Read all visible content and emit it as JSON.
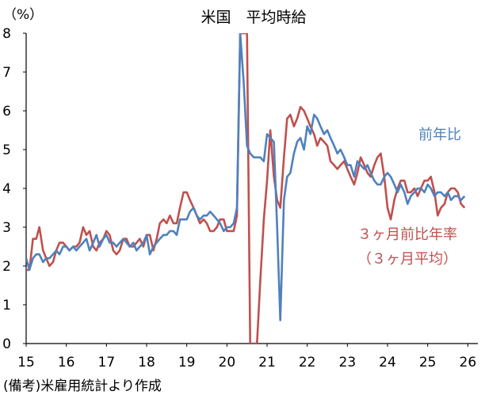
{
  "chart_data": {
    "type": "line",
    "title": "米国　平均時給",
    "ylabel": "（%）",
    "note": "(備考)米雇用統計より作成",
    "ylim": [
      0,
      8
    ],
    "xlim": [
      2015,
      2026.25
    ],
    "y_ticks": [
      "0",
      "1",
      "2",
      "3",
      "4",
      "5",
      "6",
      "7",
      "8"
    ],
    "x_ticks": [
      {
        "label": "15",
        "year": 2015
      },
      {
        "label": "16",
        "year": 2016
      },
      {
        "label": "17",
        "year": 2017
      },
      {
        "label": "18",
        "year": 2018
      },
      {
        "label": "19",
        "year": 2019
      },
      {
        "label": "20",
        "year": 2020
      },
      {
        "label": "21",
        "year": 2021
      },
      {
        "label": "22",
        "year": 2022
      },
      {
        "label": "23",
        "year": 2023
      },
      {
        "label": "24",
        "year": 2024
      },
      {
        "label": "25",
        "year": 2025
      },
      {
        "label": "26",
        "year": 2026
      }
    ],
    "grid": false,
    "series": [
      {
        "name": "前年比",
        "color": "#4F81BD",
        "label_lines": [
          "前年比"
        ],
        "points": [
          [
            2015.0,
            2.2
          ],
          [
            2015.08,
            1.9
          ],
          [
            2015.17,
            2.2
          ],
          [
            2015.25,
            2.3
          ],
          [
            2015.33,
            2.3
          ],
          [
            2015.42,
            2.1
          ],
          [
            2015.5,
            2.2
          ],
          [
            2015.58,
            2.2
          ],
          [
            2015.67,
            2.3
          ],
          [
            2015.75,
            2.4
          ],
          [
            2015.83,
            2.3
          ],
          [
            2015.92,
            2.5
          ],
          [
            2016.0,
            2.5
          ],
          [
            2016.08,
            2.4
          ],
          [
            2016.17,
            2.5
          ],
          [
            2016.25,
            2.4
          ],
          [
            2016.33,
            2.5
          ],
          [
            2016.42,
            2.6
          ],
          [
            2016.5,
            2.7
          ],
          [
            2016.58,
            2.4
          ],
          [
            2016.67,
            2.6
          ],
          [
            2016.75,
            2.8
          ],
          [
            2016.83,
            2.5
          ],
          [
            2016.92,
            2.7
          ],
          [
            2017.0,
            2.8
          ],
          [
            2017.08,
            2.6
          ],
          [
            2017.17,
            2.6
          ],
          [
            2017.25,
            2.5
          ],
          [
            2017.33,
            2.6
          ],
          [
            2017.42,
            2.7
          ],
          [
            2017.5,
            2.6
          ],
          [
            2017.58,
            2.5
          ],
          [
            2017.67,
            2.6
          ],
          [
            2017.75,
            2.4
          ],
          [
            2017.83,
            2.5
          ],
          [
            2017.92,
            2.6
          ],
          [
            2018.0,
            2.8
          ],
          [
            2018.08,
            2.3
          ],
          [
            2018.17,
            2.5
          ],
          [
            2018.25,
            2.6
          ],
          [
            2018.33,
            2.7
          ],
          [
            2018.42,
            2.8
          ],
          [
            2018.5,
            2.8
          ],
          [
            2018.58,
            2.9
          ],
          [
            2018.67,
            2.9
          ],
          [
            2018.75,
            2.8
          ],
          [
            2018.83,
            3.2
          ],
          [
            2018.92,
            3.2
          ],
          [
            2019.0,
            3.2
          ],
          [
            2019.08,
            3.4
          ],
          [
            2019.17,
            3.5
          ],
          [
            2019.25,
            3.3
          ],
          [
            2019.33,
            3.2
          ],
          [
            2019.42,
            3.3
          ],
          [
            2019.5,
            3.3
          ],
          [
            2019.58,
            3.4
          ],
          [
            2019.67,
            3.3
          ],
          [
            2019.75,
            3.2
          ],
          [
            2019.83,
            3.1
          ],
          [
            2019.92,
            2.9
          ],
          [
            2020.0,
            3.0
          ],
          [
            2020.08,
            3.0
          ],
          [
            2020.17,
            3.1
          ],
          [
            2020.25,
            3.5
          ],
          [
            2020.33,
            8.0
          ],
          [
            2020.42,
            6.7
          ],
          [
            2020.5,
            5.1
          ],
          [
            2020.58,
            4.9
          ],
          [
            2020.67,
            4.8
          ],
          [
            2020.75,
            4.8
          ],
          [
            2020.83,
            4.8
          ],
          [
            2020.92,
            4.7
          ],
          [
            2021.0,
            5.4
          ],
          [
            2021.08,
            5.3
          ],
          [
            2021.17,
            5.2
          ],
          [
            2021.25,
            3.0
          ],
          [
            2021.33,
            0.6
          ],
          [
            2021.42,
            3.7
          ],
          [
            2021.5,
            4.3
          ],
          [
            2021.58,
            4.4
          ],
          [
            2021.67,
            4.9
          ],
          [
            2021.75,
            5.2
          ],
          [
            2021.83,
            5.3
          ],
          [
            2021.92,
            5.0
          ],
          [
            2022.0,
            5.6
          ],
          [
            2022.08,
            5.4
          ],
          [
            2022.17,
            5.9
          ],
          [
            2022.25,
            5.8
          ],
          [
            2022.33,
            5.6
          ],
          [
            2022.42,
            5.4
          ],
          [
            2022.5,
            5.5
          ],
          [
            2022.58,
            5.3
          ],
          [
            2022.67,
            5.1
          ],
          [
            2022.75,
            4.9
          ],
          [
            2022.83,
            5.0
          ],
          [
            2022.92,
            4.8
          ],
          [
            2023.0,
            4.6
          ],
          [
            2023.08,
            4.6
          ],
          [
            2023.17,
            4.3
          ],
          [
            2023.25,
            4.7
          ],
          [
            2023.33,
            4.6
          ],
          [
            2023.42,
            4.5
          ],
          [
            2023.5,
            4.6
          ],
          [
            2023.58,
            4.4
          ],
          [
            2023.67,
            4.2
          ],
          [
            2023.75,
            4.1
          ],
          [
            2023.83,
            4.1
          ],
          [
            2023.92,
            4.3
          ],
          [
            2024.0,
            4.4
          ],
          [
            2024.08,
            4.3
          ],
          [
            2024.17,
            4.1
          ],
          [
            2024.25,
            3.9
          ],
          [
            2024.33,
            4.1
          ],
          [
            2024.42,
            3.9
          ],
          [
            2024.5,
            3.6
          ],
          [
            2024.58,
            3.8
          ],
          [
            2024.67,
            3.9
          ],
          [
            2024.75,
            4.0
          ],
          [
            2024.83,
            4.0
          ],
          [
            2024.92,
            3.9
          ],
          [
            2025.0,
            4.1
          ],
          [
            2025.08,
            4.0
          ],
          [
            2025.17,
            3.8
          ],
          [
            2025.25,
            3.9
          ],
          [
            2025.33,
            3.9
          ],
          [
            2025.42,
            3.8
          ],
          [
            2025.5,
            3.9
          ],
          [
            2025.58,
            3.7
          ],
          [
            2025.67,
            3.8
          ],
          [
            2025.75,
            3.8
          ],
          [
            2025.83,
            3.7
          ],
          [
            2025.92,
            3.8
          ]
        ]
      },
      {
        "name": "３ヶ月前比年率（３ヶ月平均）",
        "color": "#C0504D",
        "label_lines": [
          "３ヶ月前比年率",
          "（３ヶ月平均）"
        ],
        "points": [
          [
            2015.0,
            1.9
          ],
          [
            2015.08,
            1.9
          ],
          [
            2015.17,
            2.7
          ],
          [
            2015.25,
            2.7
          ],
          [
            2015.33,
            3.0
          ],
          [
            2015.42,
            2.4
          ],
          [
            2015.5,
            2.2
          ],
          [
            2015.58,
            2.0
          ],
          [
            2015.67,
            2.1
          ],
          [
            2015.75,
            2.4
          ],
          [
            2015.83,
            2.6
          ],
          [
            2015.92,
            2.6
          ],
          [
            2016.0,
            2.5
          ],
          [
            2016.08,
            2.4
          ],
          [
            2016.17,
            2.5
          ],
          [
            2016.25,
            2.5
          ],
          [
            2016.33,
            2.6
          ],
          [
            2016.42,
            3.0
          ],
          [
            2016.5,
            2.8
          ],
          [
            2016.58,
            2.9
          ],
          [
            2016.67,
            2.5
          ],
          [
            2016.75,
            2.4
          ],
          [
            2016.83,
            2.6
          ],
          [
            2016.92,
            2.7
          ],
          [
            2017.0,
            2.9
          ],
          [
            2017.08,
            2.8
          ],
          [
            2017.17,
            2.4
          ],
          [
            2017.25,
            2.3
          ],
          [
            2017.33,
            2.4
          ],
          [
            2017.42,
            2.7
          ],
          [
            2017.5,
            2.7
          ],
          [
            2017.58,
            2.5
          ],
          [
            2017.67,
            2.5
          ],
          [
            2017.75,
            2.6
          ],
          [
            2017.83,
            2.7
          ],
          [
            2017.92,
            2.5
          ],
          [
            2018.0,
            2.8
          ],
          [
            2018.08,
            2.8
          ],
          [
            2018.17,
            2.4
          ],
          [
            2018.25,
            2.7
          ],
          [
            2018.33,
            3.1
          ],
          [
            2018.42,
            3.2
          ],
          [
            2018.5,
            3.1
          ],
          [
            2018.58,
            3.3
          ],
          [
            2018.67,
            3.1
          ],
          [
            2018.75,
            3.1
          ],
          [
            2018.83,
            3.5
          ],
          [
            2018.92,
            3.9
          ],
          [
            2019.0,
            3.9
          ],
          [
            2019.08,
            3.7
          ],
          [
            2019.17,
            3.5
          ],
          [
            2019.25,
            3.3
          ],
          [
            2019.33,
            3.1
          ],
          [
            2019.42,
            3.2
          ],
          [
            2019.5,
            3.1
          ],
          [
            2019.58,
            2.9
          ],
          [
            2019.67,
            2.9
          ],
          [
            2019.75,
            3.0
          ],
          [
            2019.83,
            3.2
          ],
          [
            2019.92,
            3.2
          ],
          [
            2020.0,
            2.9
          ],
          [
            2020.08,
            2.9
          ],
          [
            2020.17,
            2.9
          ],
          [
            2020.25,
            3.3
          ],
          [
            2020.33,
            8.0
          ],
          [
            2020.42,
            8.0
          ],
          [
            2020.5,
            8.0
          ],
          [
            2020.58,
            0.0
          ],
          [
            2020.67,
            0.0
          ],
          [
            2020.75,
            0.0
          ],
          [
            2020.83,
            1.6
          ],
          [
            2020.92,
            3.2
          ],
          [
            2021.0,
            4.2
          ],
          [
            2021.08,
            5.5
          ],
          [
            2021.17,
            4.3
          ],
          [
            2021.25,
            3.7
          ],
          [
            2021.33,
            3.5
          ],
          [
            2021.42,
            4.8
          ],
          [
            2021.5,
            5.8
          ],
          [
            2021.58,
            5.9
          ],
          [
            2021.67,
            5.6
          ],
          [
            2021.75,
            5.8
          ],
          [
            2021.83,
            6.1
          ],
          [
            2021.92,
            6.0
          ],
          [
            2022.0,
            5.8
          ],
          [
            2022.08,
            5.6
          ],
          [
            2022.17,
            5.4
          ],
          [
            2022.25,
            5.1
          ],
          [
            2022.33,
            5.3
          ],
          [
            2022.42,
            5.2
          ],
          [
            2022.5,
            5.1
          ],
          [
            2022.58,
            4.7
          ],
          [
            2022.67,
            4.6
          ],
          [
            2022.75,
            4.5
          ],
          [
            2022.83,
            4.6
          ],
          [
            2022.92,
            4.7
          ],
          [
            2023.0,
            4.5
          ],
          [
            2023.08,
            4.3
          ],
          [
            2023.17,
            4.1
          ],
          [
            2023.25,
            4.4
          ],
          [
            2023.33,
            4.8
          ],
          [
            2023.42,
            4.6
          ],
          [
            2023.5,
            4.4
          ],
          [
            2023.58,
            4.3
          ],
          [
            2023.67,
            4.6
          ],
          [
            2023.75,
            4.8
          ],
          [
            2023.83,
            4.9
          ],
          [
            2023.92,
            4.3
          ],
          [
            2024.0,
            3.5
          ],
          [
            2024.08,
            3.2
          ],
          [
            2024.17,
            3.7
          ],
          [
            2024.25,
            4.0
          ],
          [
            2024.33,
            4.2
          ],
          [
            2024.42,
            4.2
          ],
          [
            2024.5,
            3.9
          ],
          [
            2024.58,
            3.9
          ],
          [
            2024.67,
            4.0
          ],
          [
            2024.75,
            3.8
          ],
          [
            2024.83,
            4.0
          ],
          [
            2024.92,
            4.2
          ],
          [
            2025.0,
            4.2
          ],
          [
            2025.08,
            4.3
          ],
          [
            2025.17,
            3.9
          ],
          [
            2025.25,
            3.3
          ],
          [
            2025.33,
            3.5
          ],
          [
            2025.42,
            3.6
          ],
          [
            2025.5,
            3.9
          ],
          [
            2025.58,
            4.0
          ],
          [
            2025.67,
            4.0
          ],
          [
            2025.75,
            3.9
          ],
          [
            2025.83,
            3.6
          ],
          [
            2025.92,
            3.5
          ]
        ]
      }
    ]
  }
}
